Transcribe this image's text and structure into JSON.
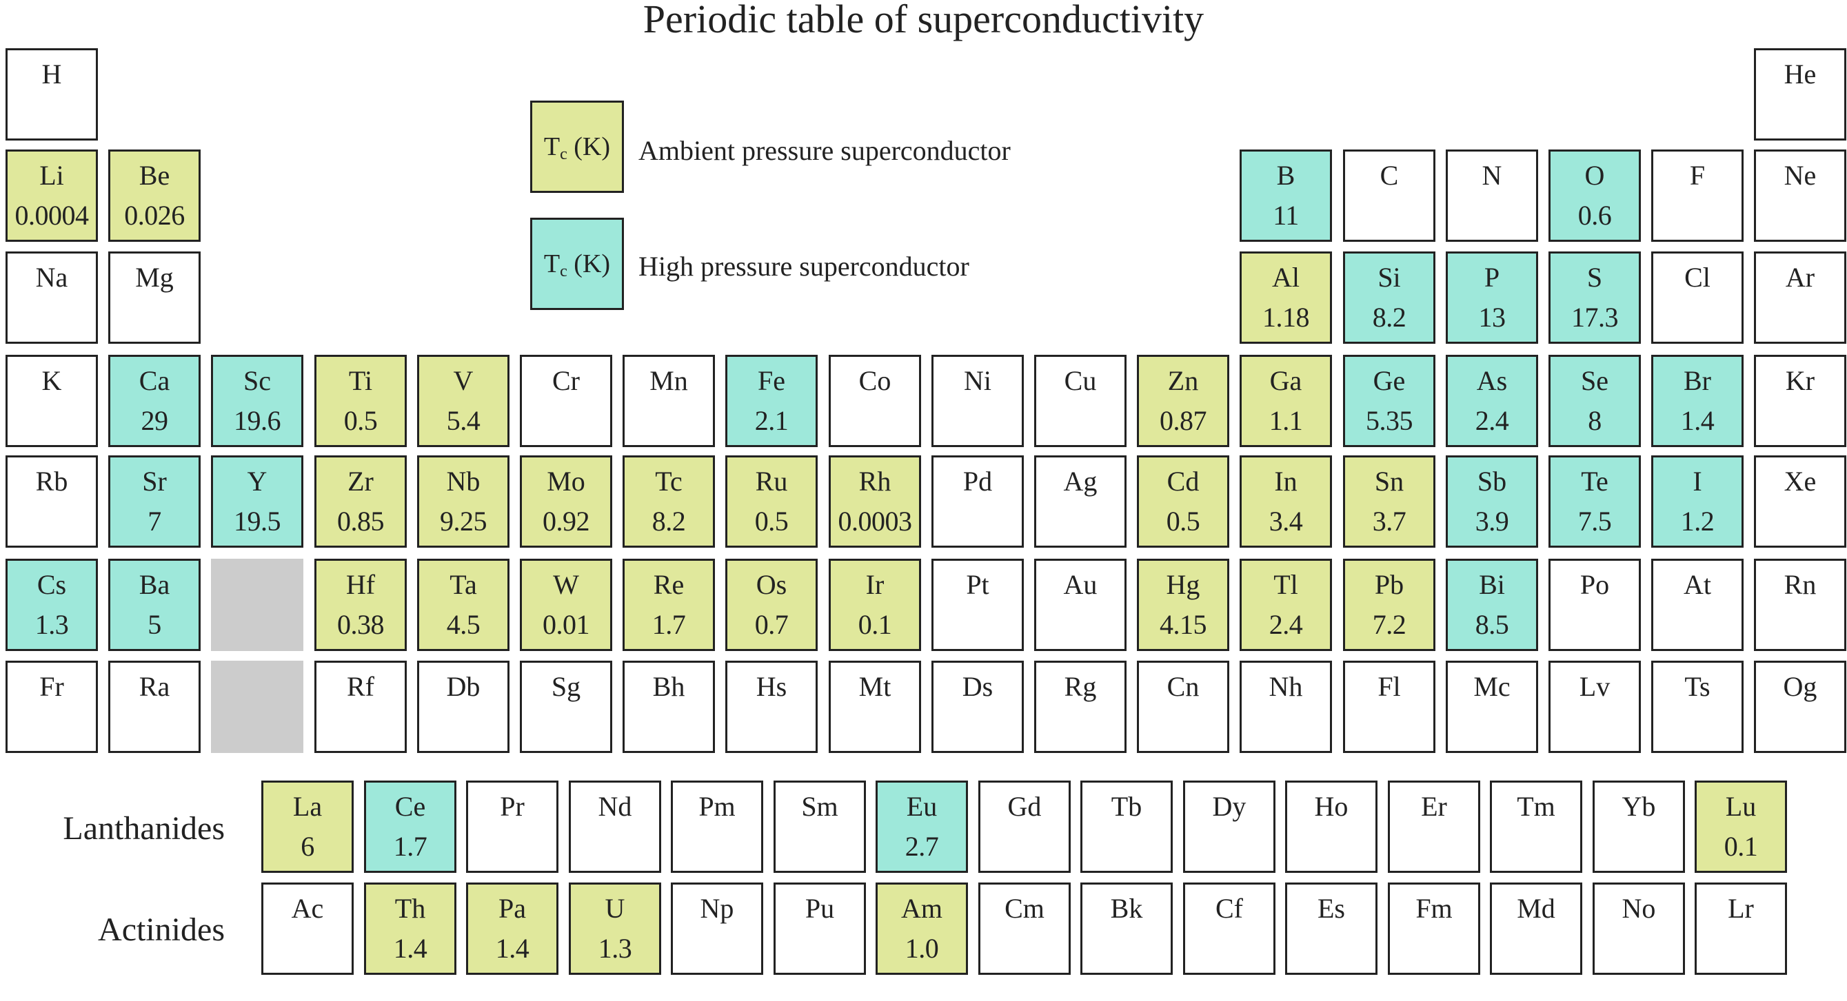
{
  "title": "Periodic table of superconductivity",
  "colors": {
    "ambient": "#e0e89c",
    "high_pressure": "#9ee8da",
    "placeholder": "#cccccc"
  },
  "legend": {
    "ambient": {
      "box_symbol": "T",
      "box_subscript": "c",
      "box_unit": " (K)",
      "label": "Ambient pressure superconductor"
    },
    "high_pressure": {
      "box_symbol": "T",
      "box_subscript": "c",
      "box_unit": " (K)",
      "label": "High pressure superconductor"
    }
  },
  "row_labels": {
    "lanthanides": "Lanthanides",
    "actinides": "Actinides"
  },
  "elements": [
    {
      "symbol": "H",
      "period": 1,
      "group": 1,
      "tc": "",
      "type": "none"
    },
    {
      "symbol": "He",
      "period": 1,
      "group": 18,
      "tc": "",
      "type": "none"
    },
    {
      "symbol": "Li",
      "period": 2,
      "group": 1,
      "tc": "0.0004",
      "type": "ambient"
    },
    {
      "symbol": "Be",
      "period": 2,
      "group": 2,
      "tc": "0.026",
      "type": "ambient"
    },
    {
      "symbol": "B",
      "period": 2,
      "group": 13,
      "tc": "11",
      "type": "high_pressure"
    },
    {
      "symbol": "C",
      "period": 2,
      "group": 14,
      "tc": "",
      "type": "none"
    },
    {
      "symbol": "N",
      "period": 2,
      "group": 15,
      "tc": "",
      "type": "none"
    },
    {
      "symbol": "O",
      "period": 2,
      "group": 16,
      "tc": "0.6",
      "type": "high_pressure"
    },
    {
      "symbol": "F",
      "period": 2,
      "group": 17,
      "tc": "",
      "type": "none"
    },
    {
      "symbol": "Ne",
      "period": 2,
      "group": 18,
      "tc": "",
      "type": "none"
    },
    {
      "symbol": "Na",
      "period": 3,
      "group": 1,
      "tc": "",
      "type": "none"
    },
    {
      "symbol": "Mg",
      "period": 3,
      "group": 2,
      "tc": "",
      "type": "none"
    },
    {
      "symbol": "Al",
      "period": 3,
      "group": 13,
      "tc": "1.18",
      "type": "ambient"
    },
    {
      "symbol": "Si",
      "period": 3,
      "group": 14,
      "tc": "8.2",
      "type": "high_pressure"
    },
    {
      "symbol": "P",
      "period": 3,
      "group": 15,
      "tc": "13",
      "type": "high_pressure"
    },
    {
      "symbol": "S",
      "period": 3,
      "group": 16,
      "tc": "17.3",
      "type": "high_pressure"
    },
    {
      "symbol": "Cl",
      "period": 3,
      "group": 17,
      "tc": "",
      "type": "none"
    },
    {
      "symbol": "Ar",
      "period": 3,
      "group": 18,
      "tc": "",
      "type": "none"
    },
    {
      "symbol": "K",
      "period": 4,
      "group": 1,
      "tc": "",
      "type": "none"
    },
    {
      "symbol": "Ca",
      "period": 4,
      "group": 2,
      "tc": "29",
      "type": "high_pressure"
    },
    {
      "symbol": "Sc",
      "period": 4,
      "group": 3,
      "tc": "19.6",
      "type": "high_pressure"
    },
    {
      "symbol": "Ti",
      "period": 4,
      "group": 4,
      "tc": "0.5",
      "type": "ambient"
    },
    {
      "symbol": "V",
      "period": 4,
      "group": 5,
      "tc": "5.4",
      "type": "ambient"
    },
    {
      "symbol": "Cr",
      "period": 4,
      "group": 6,
      "tc": "",
      "type": "none"
    },
    {
      "symbol": "Mn",
      "period": 4,
      "group": 7,
      "tc": "",
      "type": "none"
    },
    {
      "symbol": "Fe",
      "period": 4,
      "group": 8,
      "tc": "2.1",
      "type": "high_pressure"
    },
    {
      "symbol": "Co",
      "period": 4,
      "group": 9,
      "tc": "",
      "type": "none"
    },
    {
      "symbol": "Ni",
      "period": 4,
      "group": 10,
      "tc": "",
      "type": "none"
    },
    {
      "symbol": "Cu",
      "period": 4,
      "group": 11,
      "tc": "",
      "type": "none"
    },
    {
      "symbol": "Zn",
      "period": 4,
      "group": 12,
      "tc": "0.87",
      "type": "ambient"
    },
    {
      "symbol": "Ga",
      "period": 4,
      "group": 13,
      "tc": "1.1",
      "type": "ambient"
    },
    {
      "symbol": "Ge",
      "period": 4,
      "group": 14,
      "tc": "5.35",
      "type": "high_pressure"
    },
    {
      "symbol": "As",
      "period": 4,
      "group": 15,
      "tc": "2.4",
      "type": "high_pressure"
    },
    {
      "symbol": "Se",
      "period": 4,
      "group": 16,
      "tc": "8",
      "type": "high_pressure"
    },
    {
      "symbol": "Br",
      "period": 4,
      "group": 17,
      "tc": "1.4",
      "type": "high_pressure"
    },
    {
      "symbol": "Kr",
      "period": 4,
      "group": 18,
      "tc": "",
      "type": "none"
    },
    {
      "symbol": "Rb",
      "period": 5,
      "group": 1,
      "tc": "",
      "type": "none"
    },
    {
      "symbol": "Sr",
      "period": 5,
      "group": 2,
      "tc": "7",
      "type": "high_pressure"
    },
    {
      "symbol": "Y",
      "period": 5,
      "group": 3,
      "tc": "19.5",
      "type": "high_pressure"
    },
    {
      "symbol": "Zr",
      "period": 5,
      "group": 4,
      "tc": "0.85",
      "type": "ambient"
    },
    {
      "symbol": "Nb",
      "period": 5,
      "group": 5,
      "tc": "9.25",
      "type": "ambient"
    },
    {
      "symbol": "Mo",
      "period": 5,
      "group": 6,
      "tc": "0.92",
      "type": "ambient"
    },
    {
      "symbol": "Tc",
      "period": 5,
      "group": 7,
      "tc": "8.2",
      "type": "ambient"
    },
    {
      "symbol": "Ru",
      "period": 5,
      "group": 8,
      "tc": "0.5",
      "type": "ambient"
    },
    {
      "symbol": "Rh",
      "period": 5,
      "group": 9,
      "tc": "0.0003",
      "type": "ambient"
    },
    {
      "symbol": "Pd",
      "period": 5,
      "group": 10,
      "tc": "",
      "type": "none"
    },
    {
      "symbol": "Ag",
      "period": 5,
      "group": 11,
      "tc": "",
      "type": "none"
    },
    {
      "symbol": "Cd",
      "period": 5,
      "group": 12,
      "tc": "0.5",
      "type": "ambient"
    },
    {
      "symbol": "In",
      "period": 5,
      "group": 13,
      "tc": "3.4",
      "type": "ambient"
    },
    {
      "symbol": "Sn",
      "period": 5,
      "group": 14,
      "tc": "3.7",
      "type": "ambient"
    },
    {
      "symbol": "Sb",
      "period": 5,
      "group": 15,
      "tc": "3.9",
      "type": "high_pressure"
    },
    {
      "symbol": "Te",
      "period": 5,
      "group": 16,
      "tc": "7.5",
      "type": "high_pressure"
    },
    {
      "symbol": "I",
      "period": 5,
      "group": 17,
      "tc": "1.2",
      "type": "high_pressure"
    },
    {
      "symbol": "Xe",
      "period": 5,
      "group": 18,
      "tc": "",
      "type": "none"
    },
    {
      "symbol": "Cs",
      "period": 6,
      "group": 1,
      "tc": "1.3",
      "type": "high_pressure"
    },
    {
      "symbol": "Ba",
      "period": 6,
      "group": 2,
      "tc": "5",
      "type": "high_pressure"
    },
    {
      "symbol": "",
      "period": 6,
      "group": 3,
      "tc": "",
      "type": "placeholder"
    },
    {
      "symbol": "Hf",
      "period": 6,
      "group": 4,
      "tc": "0.38",
      "type": "ambient"
    },
    {
      "symbol": "Ta",
      "period": 6,
      "group": 5,
      "tc": "4.5",
      "type": "ambient"
    },
    {
      "symbol": "W",
      "period": 6,
      "group": 6,
      "tc": "0.01",
      "type": "ambient"
    },
    {
      "symbol": "Re",
      "period": 6,
      "group": 7,
      "tc": "1.7",
      "type": "ambient"
    },
    {
      "symbol": "Os",
      "period": 6,
      "group": 8,
      "tc": "0.7",
      "type": "ambient"
    },
    {
      "symbol": "Ir",
      "period": 6,
      "group": 9,
      "tc": "0.1",
      "type": "ambient"
    },
    {
      "symbol": "Pt",
      "period": 6,
      "group": 10,
      "tc": "",
      "type": "none"
    },
    {
      "symbol": "Au",
      "period": 6,
      "group": 11,
      "tc": "",
      "type": "none"
    },
    {
      "symbol": "Hg",
      "period": 6,
      "group": 12,
      "tc": "4.15",
      "type": "ambient"
    },
    {
      "symbol": "Tl",
      "period": 6,
      "group": 13,
      "tc": "2.4",
      "type": "ambient"
    },
    {
      "symbol": "Pb",
      "period": 6,
      "group": 14,
      "tc": "7.2",
      "type": "ambient"
    },
    {
      "symbol": "Bi",
      "period": 6,
      "group": 15,
      "tc": "8.5",
      "type": "high_pressure"
    },
    {
      "symbol": "Po",
      "period": 6,
      "group": 16,
      "tc": "",
      "type": "none"
    },
    {
      "symbol": "At",
      "period": 6,
      "group": 17,
      "tc": "",
      "type": "none"
    },
    {
      "symbol": "Rn",
      "period": 6,
      "group": 18,
      "tc": "",
      "type": "none"
    },
    {
      "symbol": "Fr",
      "period": 7,
      "group": 1,
      "tc": "",
      "type": "none"
    },
    {
      "symbol": "Ra",
      "period": 7,
      "group": 2,
      "tc": "",
      "type": "none"
    },
    {
      "symbol": "",
      "period": 7,
      "group": 3,
      "tc": "",
      "type": "placeholder"
    },
    {
      "symbol": "Rf",
      "period": 7,
      "group": 4,
      "tc": "",
      "type": "none"
    },
    {
      "symbol": "Db",
      "period": 7,
      "group": 5,
      "tc": "",
      "type": "none"
    },
    {
      "symbol": "Sg",
      "period": 7,
      "group": 6,
      "tc": "",
      "type": "none"
    },
    {
      "symbol": "Bh",
      "period": 7,
      "group": 7,
      "tc": "",
      "type": "none"
    },
    {
      "symbol": "Hs",
      "period": 7,
      "group": 8,
      "tc": "",
      "type": "none"
    },
    {
      "symbol": "Mt",
      "period": 7,
      "group": 9,
      "tc": "",
      "type": "none"
    },
    {
      "symbol": "Ds",
      "period": 7,
      "group": 10,
      "tc": "",
      "type": "none"
    },
    {
      "symbol": "Rg",
      "period": 7,
      "group": 11,
      "tc": "",
      "type": "none"
    },
    {
      "symbol": "Cn",
      "period": 7,
      "group": 12,
      "tc": "",
      "type": "none"
    },
    {
      "symbol": "Nh",
      "period": 7,
      "group": 13,
      "tc": "",
      "type": "none"
    },
    {
      "symbol": "Fl",
      "period": 7,
      "group": 14,
      "tc": "",
      "type": "none"
    },
    {
      "symbol": "Mc",
      "period": 7,
      "group": 15,
      "tc": "",
      "type": "none"
    },
    {
      "symbol": "Lv",
      "period": 7,
      "group": 16,
      "tc": "",
      "type": "none"
    },
    {
      "symbol": "Ts",
      "period": 7,
      "group": 17,
      "tc": "",
      "type": "none"
    },
    {
      "symbol": "Og",
      "period": 7,
      "group": 18,
      "tc": "",
      "type": "none"
    }
  ],
  "lanthanides": [
    {
      "symbol": "La",
      "tc": "6",
      "type": "ambient"
    },
    {
      "symbol": "Ce",
      "tc": "1.7",
      "type": "high_pressure"
    },
    {
      "symbol": "Pr",
      "tc": "",
      "type": "none"
    },
    {
      "symbol": "Nd",
      "tc": "",
      "type": "none"
    },
    {
      "symbol": "Pm",
      "tc": "",
      "type": "none"
    },
    {
      "symbol": "Sm",
      "tc": "",
      "type": "none"
    },
    {
      "symbol": "Eu",
      "tc": "2.7",
      "type": "high_pressure"
    },
    {
      "symbol": "Gd",
      "tc": "",
      "type": "none"
    },
    {
      "symbol": "Tb",
      "tc": "",
      "type": "none"
    },
    {
      "symbol": "Dy",
      "tc": "",
      "type": "none"
    },
    {
      "symbol": "Ho",
      "tc": "",
      "type": "none"
    },
    {
      "symbol": "Er",
      "tc": "",
      "type": "none"
    },
    {
      "symbol": "Tm",
      "tc": "",
      "type": "none"
    },
    {
      "symbol": "Yb",
      "tc": "",
      "type": "none"
    },
    {
      "symbol": "Lu",
      "tc": "0.1",
      "type": "ambient"
    }
  ],
  "actinides": [
    {
      "symbol": "Ac",
      "tc": "",
      "type": "none"
    },
    {
      "symbol": "Th",
      "tc": "1.4",
      "type": "ambient"
    },
    {
      "symbol": "Pa",
      "tc": "1.4",
      "type": "ambient"
    },
    {
      "symbol": "U",
      "tc": "1.3",
      "type": "ambient"
    },
    {
      "symbol": "Np",
      "tc": "",
      "type": "none"
    },
    {
      "symbol": "Pu",
      "tc": "",
      "type": "none"
    },
    {
      "symbol": "Am",
      "tc": "1.0",
      "type": "ambient"
    },
    {
      "symbol": "Cm",
      "tc": "",
      "type": "none"
    },
    {
      "symbol": "Bk",
      "tc": "",
      "type": "none"
    },
    {
      "symbol": "Cf",
      "tc": "",
      "type": "none"
    },
    {
      "symbol": "Es",
      "tc": "",
      "type": "none"
    },
    {
      "symbol": "Fm",
      "tc": "",
      "type": "none"
    },
    {
      "symbol": "Md",
      "tc": "",
      "type": "none"
    },
    {
      "symbol": "No",
      "tc": "",
      "type": "none"
    },
    {
      "symbol": "Lr",
      "tc": "",
      "type": "none"
    }
  ]
}
